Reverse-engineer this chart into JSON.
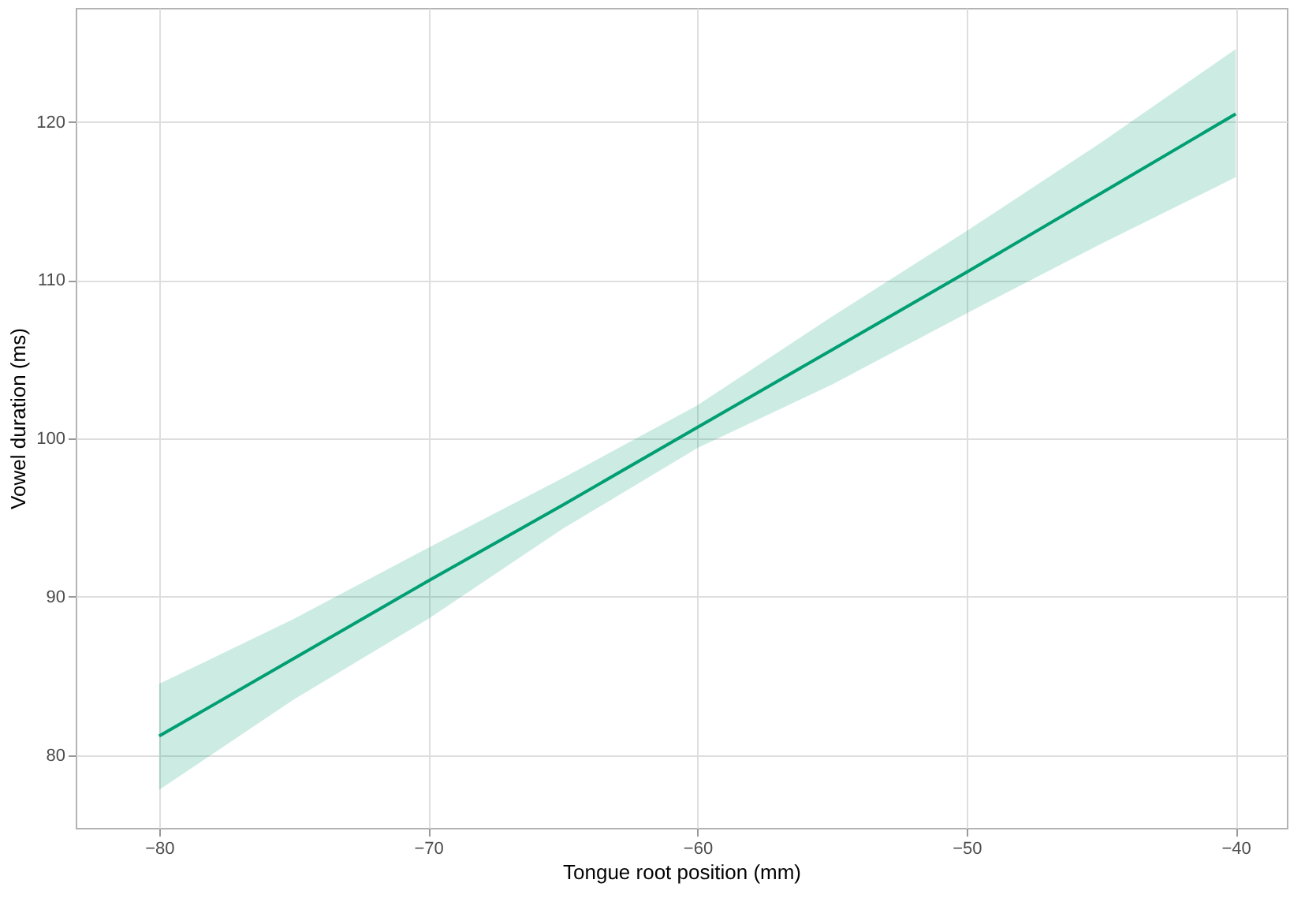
{
  "chart_data": {
    "type": "line",
    "xlabel": "Tongue root position (mm)",
    "ylabel": "Vowel duration (ms)",
    "x": [
      -80,
      -75,
      -70,
      -65,
      -60,
      -55,
      -50,
      -45,
      -40
    ],
    "series": [
      {
        "color": "#009e73",
        "values": [
          81.2,
          86.1,
          91.0,
          95.8,
          100.7,
          105.6,
          110.5,
          115.5,
          120.5
        ],
        "lower": [
          77.8,
          83.5,
          88.6,
          94.3,
          99.4,
          103.4,
          107.9,
          112.3,
          116.5
        ],
        "upper": [
          84.5,
          88.6,
          93.1,
          97.5,
          102.1,
          107.7,
          113.1,
          118.7,
          124.6
        ]
      }
    ],
    "xlim": [
      -83.1,
      -38.1
    ],
    "ylim": [
      75.4,
      127.2
    ],
    "xticks": [
      -80,
      -70,
      -60,
      -50,
      -40
    ],
    "yticks": [
      80,
      90,
      100,
      110,
      120
    ],
    "grid": true,
    "marker": "none",
    "line_style": "solid"
  }
}
